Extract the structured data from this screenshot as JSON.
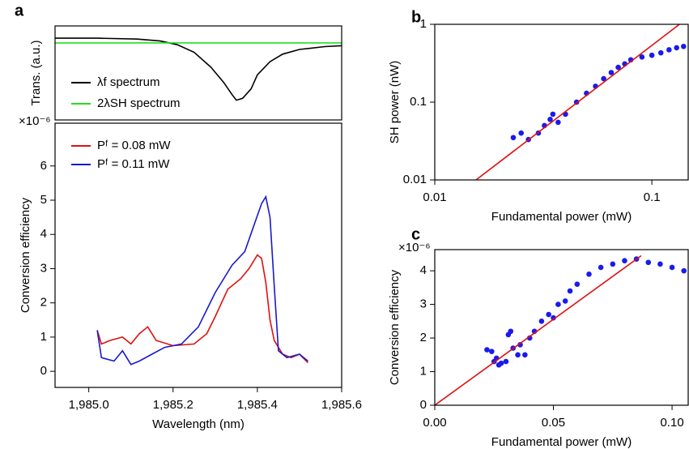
{
  "chart_data": [
    {
      "type": "line",
      "panel_label": "a",
      "y_label": "Trans. (a.u.)",
      "xlim": [
        1984.92,
        1985.6
      ],
      "ylim": [
        0,
        1
      ],
      "legend": "lower left",
      "series": [
        {
          "name": "λf spectrum",
          "color": "#000000",
          "style": "line",
          "x": [
            1984.92,
            1985.02,
            1985.115,
            1985.17,
            1985.21,
            1985.25,
            1985.29,
            1985.32,
            1985.34,
            1985.35,
            1985.365,
            1985.385,
            1985.4,
            1985.43,
            1985.46,
            1985.5,
            1985.56,
            1985.6
          ],
          "values": [
            0.87,
            0.87,
            0.86,
            0.84,
            0.8,
            0.72,
            0.56,
            0.4,
            0.27,
            0.21,
            0.23,
            0.33,
            0.48,
            0.62,
            0.7,
            0.75,
            0.78,
            0.79
          ]
        },
        {
          "name": "2λSH spectrum",
          "color": "#22dd22",
          "style": "line",
          "x": [
            1984.92,
            1985.6
          ],
          "values": [
            0.82,
            0.82
          ]
        }
      ]
    },
    {
      "type": "line",
      "y_label": "Conversion efficiency",
      "x_label": "Wavelength (nm)",
      "y_multiplier": "×10⁻⁶",
      "xlim": [
        1984.92,
        1985.6
      ],
      "ylim": [
        -0.47,
        7.25
      ],
      "legend": "upper left",
      "xticks": [
        {
          "value": 1985.0,
          "label": "1,985.0"
        },
        {
          "value": 1985.2,
          "label": "1,985.2"
        },
        {
          "value": 1985.4,
          "label": "1,985.4"
        },
        {
          "value": 1985.6,
          "label": "1,985.6"
        }
      ],
      "yticks": [
        0,
        1,
        2,
        3,
        4,
        5,
        6
      ],
      "series": [
        {
          "name": "Pᶠ = 0.08 mW",
          "color": "#e01010",
          "style": "line",
          "x": [
            1985.02,
            1985.03,
            1985.05,
            1985.08,
            1985.1,
            1985.12,
            1985.14,
            1985.16,
            1985.2,
            1985.25,
            1985.28,
            1985.3,
            1985.33,
            1985.36,
            1985.38,
            1985.4,
            1985.41,
            1985.42,
            1985.43,
            1985.44,
            1985.46,
            1985.48,
            1985.5,
            1985.52
          ],
          "values": [
            1.2,
            0.8,
            0.9,
            1.0,
            0.8,
            1.1,
            1.3,
            0.9,
            0.75,
            0.8,
            1.1,
            1.6,
            2.4,
            2.7,
            3.0,
            3.4,
            3.3,
            2.6,
            1.5,
            0.9,
            0.5,
            0.4,
            0.5,
            0.25
          ]
        },
        {
          "name": "Pᶠ = 0.11 mW",
          "color": "#1a1acc",
          "style": "line",
          "x": [
            1985.02,
            1985.03,
            1985.06,
            1985.08,
            1985.1,
            1985.12,
            1985.15,
            1985.18,
            1985.22,
            1985.26,
            1985.3,
            1985.34,
            1985.37,
            1985.39,
            1985.41,
            1985.42,
            1985.43,
            1985.44,
            1985.45,
            1985.47,
            1985.5,
            1985.52
          ],
          "values": [
            1.2,
            0.4,
            0.3,
            0.6,
            0.2,
            0.3,
            0.5,
            0.7,
            0.8,
            1.3,
            2.3,
            3.1,
            3.5,
            4.2,
            4.9,
            5.1,
            4.5,
            2.5,
            0.6,
            0.4,
            0.5,
            0.3
          ]
        }
      ]
    },
    {
      "type": "scatter",
      "panel_label": "b",
      "y_label": "SH power (nW)",
      "x_label": "Fundamental power (mW)",
      "xscale": "log",
      "yscale": "log",
      "xlim": [
        0.01,
        0.147
      ],
      "ylim": [
        0.01,
        1
      ],
      "xticks": [
        0.01,
        0.1
      ],
      "yticks": [
        0.01,
        0.1,
        1
      ],
      "series": [
        {
          "color": "#1a1aee",
          "style": "markers",
          "x": [
            0.023,
            0.025,
            0.027,
            0.03,
            0.032,
            0.034,
            0.035,
            0.037,
            0.04,
            0.045,
            0.05,
            0.055,
            0.06,
            0.065,
            0.07,
            0.075,
            0.08,
            0.09,
            0.1,
            0.11,
            0.12,
            0.13,
            0.14
          ],
          "values": [
            0.035,
            0.04,
            0.033,
            0.04,
            0.05,
            0.06,
            0.07,
            0.055,
            0.07,
            0.1,
            0.13,
            0.16,
            0.2,
            0.24,
            0.28,
            0.31,
            0.35,
            0.38,
            0.4,
            0.43,
            0.47,
            0.5,
            0.52
          ]
        },
        {
          "color": "#e01010",
          "style": "line",
          "x": [
            0.0155,
            0.134
          ],
          "values": [
            0.01,
            1
          ]
        }
      ]
    },
    {
      "type": "scatter",
      "panel_label": "c",
      "y_label": "Conversion efficiency",
      "x_label": "Fundamental power (mW)",
      "y_multiplier": "×10⁻⁶",
      "xlim": [
        0,
        0.1068
      ],
      "ylim": [
        0,
        4.63
      ],
      "xticks": [
        {
          "value": 0,
          "label": "0.00"
        },
        {
          "value": 0.05,
          "label": "0.05"
        },
        {
          "value": 0.1,
          "label": "0.10"
        }
      ],
      "yticks": [
        0,
        1,
        2,
        3,
        4
      ],
      "series": [
        {
          "color": "#1a1aee",
          "style": "markers",
          "x": [
            0.022,
            0.024,
            0.025,
            0.026,
            0.027,
            0.028,
            0.03,
            0.031,
            0.032,
            0.033,
            0.035,
            0.036,
            0.038,
            0.04,
            0.042,
            0.045,
            0.048,
            0.05,
            0.052,
            0.055,
            0.057,
            0.06,
            0.065,
            0.07,
            0.075,
            0.08,
            0.085,
            0.09,
            0.095,
            0.1,
            0.105
          ],
          "values": [
            1.65,
            1.6,
            1.3,
            1.4,
            1.2,
            1.25,
            1.3,
            2.1,
            2.2,
            1.7,
            1.5,
            1.8,
            1.5,
            2.0,
            2.2,
            2.5,
            2.7,
            2.6,
            3.0,
            3.1,
            3.4,
            3.6,
            3.9,
            4.1,
            4.2,
            4.3,
            4.35,
            4.25,
            4.2,
            4.1,
            4.0
          ]
        },
        {
          "color": "#e01010",
          "style": "line",
          "x": [
            0,
            0.087
          ],
          "values": [
            0,
            4.45
          ]
        }
      ]
    }
  ]
}
